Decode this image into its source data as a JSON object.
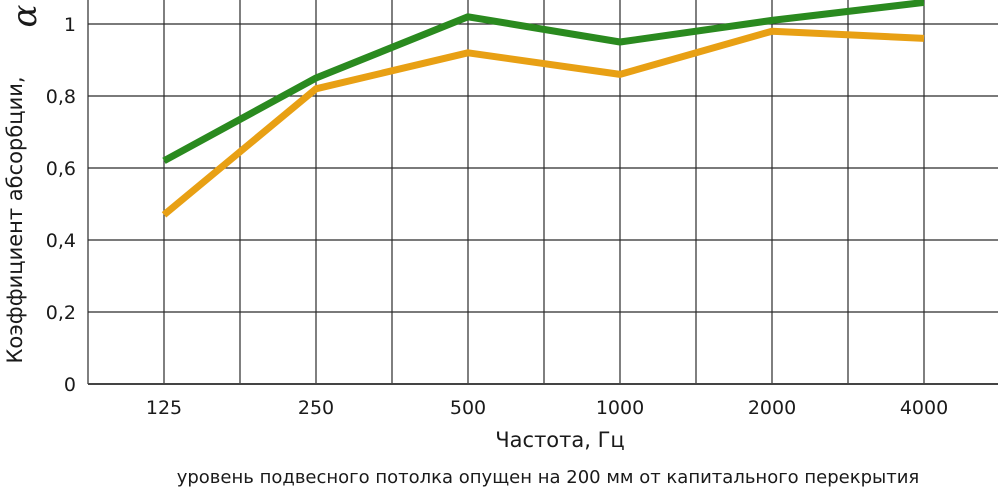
{
  "chart_data": {
    "type": "line",
    "title": "",
    "xlabel": "Частота, Гц",
    "ylabel": "Коэффициент абсорбции,",
    "ylabel_symbol": "α",
    "note": "уровень подвесного потолка опущен на 200 мм от капитального перекрытия",
    "categories": [
      "125",
      "250",
      "500",
      "1000",
      "2000",
      "4000"
    ],
    "yticks": [
      "0",
      "0,2",
      "0,4",
      "0,6",
      "0,8",
      "1"
    ],
    "ylim": [
      0,
      1.1
    ],
    "grid": true,
    "legend": "none",
    "series": [
      {
        "color": "#2a8a1f",
        "values": [
          0.62,
          0.85,
          1.02,
          0.95,
          1.01,
          1.06
        ]
      },
      {
        "color": "#e8a014",
        "values": [
          0.47,
          0.82,
          0.92,
          0.86,
          0.98,
          0.96
        ]
      }
    ]
  }
}
